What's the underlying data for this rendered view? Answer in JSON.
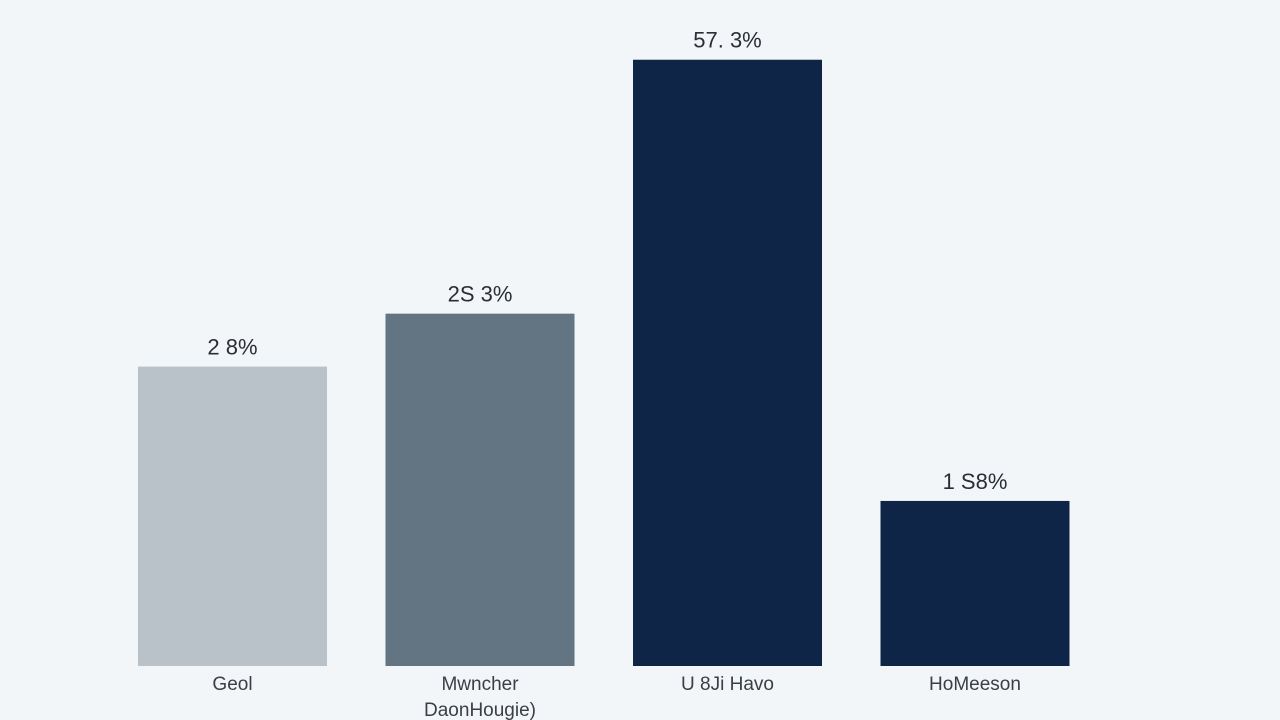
{
  "chart_data": {
    "type": "bar",
    "categories": [
      [
        "Geol"
      ],
      [
        "Mwncher",
        "DaonHougie)"
      ],
      [
        "U 8Ji Havo"
      ],
      [
        "HoMeeson"
      ]
    ],
    "values": [
      28.3,
      33.3,
      57.3,
      15.6
    ],
    "value_labels": [
      "2 8%",
      "2S 3%",
      "57. 3%",
      "1 S8%"
    ],
    "colors": [
      "#b9c2c9",
      "#637582",
      "#0e2548",
      "#0e2548"
    ],
    "ylim": [
      0,
      62
    ],
    "grid": false,
    "title": "",
    "xlabel": "",
    "ylabel": ""
  }
}
